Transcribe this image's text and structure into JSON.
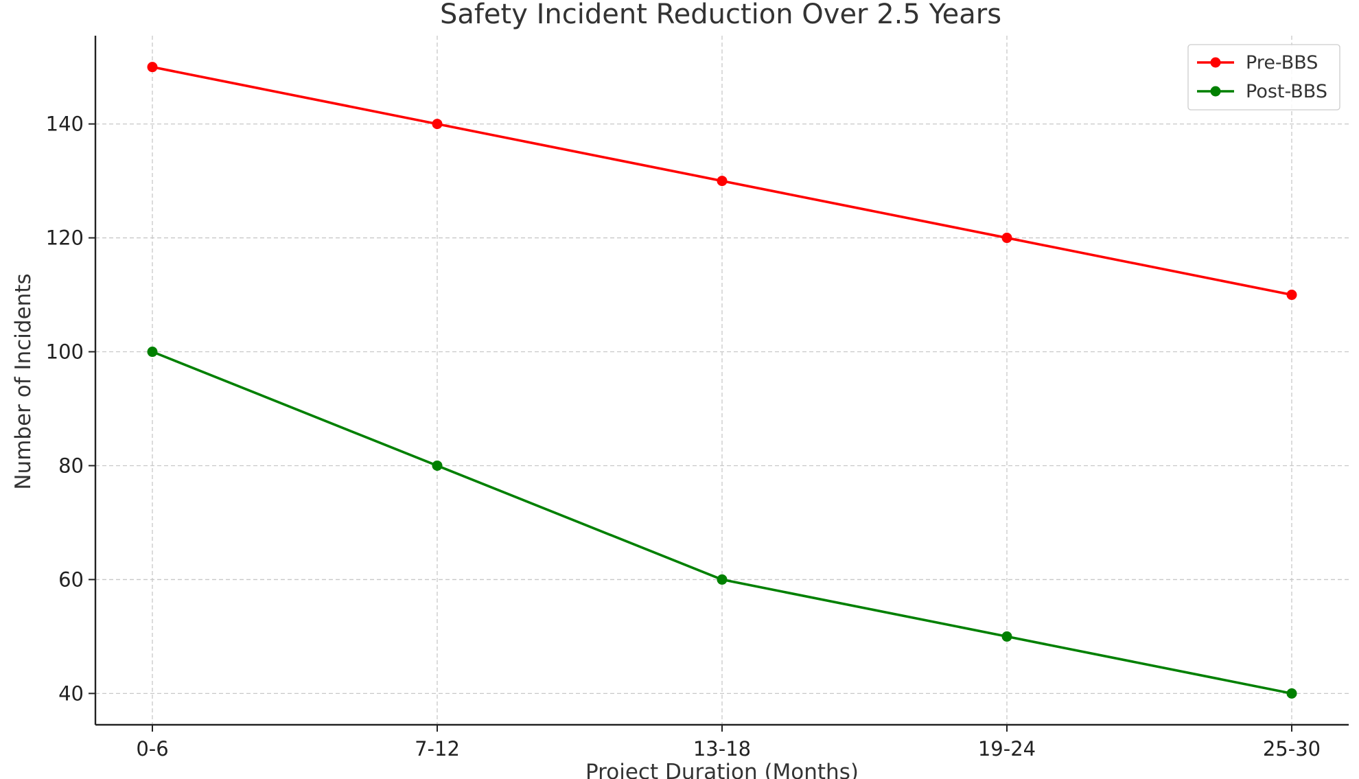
{
  "chart_data": {
    "type": "line",
    "title": "Safety Incident Reduction Over 2.5 Years",
    "xlabel": "Project Duration (Months)",
    "ylabel": "Number of Incidents",
    "categories": [
      "0-6",
      "7-12",
      "13-18",
      "19-24",
      "25-30"
    ],
    "yticks": [
      40,
      60,
      80,
      100,
      120,
      140
    ],
    "ylim": [
      34.5,
      155.5
    ],
    "grid": true,
    "legend_position": "top-right",
    "series": [
      {
        "name": "Pre-BBS",
        "color": "#ff0000",
        "values": [
          150,
          140,
          130,
          120,
          110
        ]
      },
      {
        "name": "Post-BBS",
        "color": "#008000",
        "values": [
          100,
          80,
          60,
          50,
          40
        ]
      }
    ]
  }
}
